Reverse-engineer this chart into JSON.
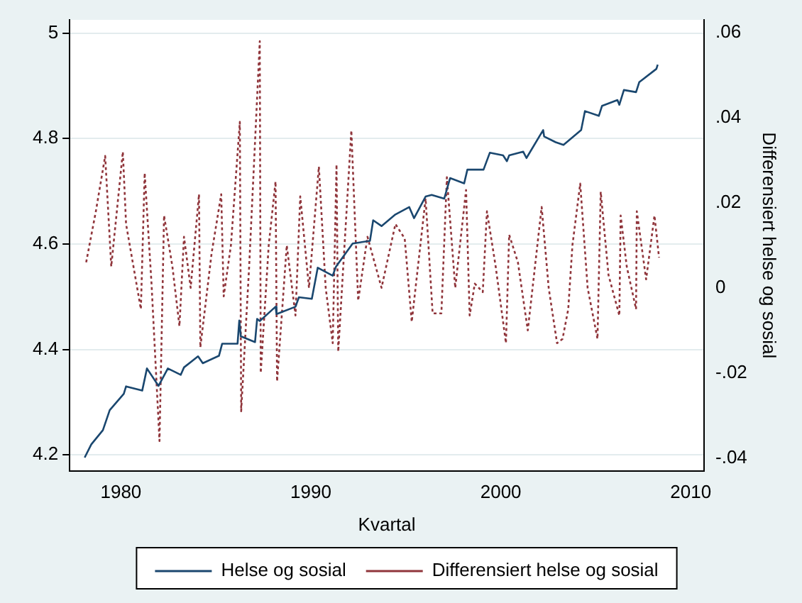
{
  "chart_data": {
    "type": "line",
    "xlabel": "Kvartal",
    "y2label": "Differensiert helse og sosial",
    "xlim": [
      1977.3,
      2010.7
    ],
    "xticks": [
      1980,
      1990,
      2000,
      2010
    ],
    "ylim": [
      4.17,
      5.025
    ],
    "yticks": [
      4.2,
      4.4,
      4.6,
      4.8,
      5
    ],
    "y2lim": [
      -0.043,
      0.063
    ],
    "y2ticks": [
      {
        "value": -0.04,
        "label": "-.04"
      },
      {
        "value": -0.02,
        "label": "-.02"
      },
      {
        "value": 0,
        "label": "0"
      },
      {
        "value": 0.02,
        "label": ".02"
      },
      {
        "value": 0.04,
        "label": ".04"
      },
      {
        "value": 0.06,
        "label": ".06"
      }
    ],
    "grid": "y",
    "legend": "bottom",
    "marker": "none",
    "series": [
      {
        "name": "Helse og sosial",
        "color": "#1a476f",
        "line_style": "solid",
        "x": [
          1978.09,
          1978.44,
          1979.05,
          1979.41,
          1980.15,
          1980.27,
          1981.12,
          1981.37,
          1981.98,
          1982.47,
          1983.15,
          1983.32,
          1984.06,
          1984.31,
          1985.16,
          1985.33,
          1986.14,
          1986.23,
          1986.31,
          1987.06,
          1987.17,
          1987.31,
          1988.14,
          1988.19,
          1989.19,
          1989.37,
          1990.05,
          1990.36,
          1991.15,
          1991.32,
          1991.52,
          1992.2,
          1993.11,
          1993.28,
          1993.72,
          1994.45,
          1995.18,
          1995.43,
          1996.04,
          1996.36,
          1997.02,
          1997.33,
          1998.07,
          1998.24,
          1999.09,
          1999.42,
          2000.12,
          2000.32,
          2000.44,
          2001.18,
          2001.35,
          2002.23,
          2002.28,
          2002.89,
          2003.3,
          2004.23,
          2004.43,
          2005.16,
          2005.33,
          2006.14,
          2006.24,
          2006.48,
          2007.12,
          2007.29,
          2008.19,
          2008.26
        ],
        "values": [
          4.195,
          4.22,
          4.247,
          4.285,
          4.316,
          4.33,
          4.322,
          4.364,
          4.331,
          4.364,
          4.352,
          4.366,
          4.387,
          4.374,
          4.388,
          4.411,
          4.411,
          4.455,
          4.425,
          4.414,
          4.458,
          4.454,
          4.481,
          4.467,
          4.481,
          4.499,
          4.496,
          4.555,
          4.54,
          4.557,
          4.567,
          4.601,
          4.606,
          4.645,
          4.634,
          4.656,
          4.67,
          4.649,
          4.69,
          4.693,
          4.686,
          4.725,
          4.715,
          4.741,
          4.741,
          4.773,
          4.768,
          4.757,
          4.768,
          4.775,
          4.763,
          4.816,
          4.804,
          4.793,
          4.788,
          4.816,
          4.852,
          4.843,
          4.862,
          4.873,
          4.864,
          4.892,
          4.888,
          4.907,
          4.932,
          4.94
        ]
      },
      {
        "name": "Differensiert helse og sosial",
        "color": "#90353b",
        "line_style": "dotted",
        "axis": "y2",
        "x": [
          1978.17,
          1978.68,
          1979.17,
          1979.49,
          1980.1,
          1980.27,
          1981.05,
          1981.25,
          1981.61,
          1982.03,
          1982.27,
          1982.71,
          1983.08,
          1983.32,
          1983.67,
          1984.11,
          1984.18,
          1984.77,
          1985.28,
          1985.41,
          1985.79,
          1986.26,
          1986.33,
          1986.75,
          1987.31,
          1987.36,
          1987.78,
          1988.14,
          1988.22,
          1988.73,
          1989.19,
          1989.44,
          1989.9,
          1990.42,
          1990.78,
          1991.15,
          1991.35,
          1991.44,
          1992.13,
          1992.49,
          1992.98,
          1993.72,
          1994.45,
          1994.94,
          1995.31,
          1996.04,
          1996.41,
          1996.87,
          1997.16,
          1997.6,
          1998.17,
          1998.36,
          1998.63,
          1999.05,
          1999.27,
          1999.73,
          2000.27,
          2000.44,
          2000.9,
          2001.42,
          2002.15,
          2002.52,
          2002.96,
          2003.25,
          2003.55,
          2003.77,
          2004.18,
          2004.57,
          2005.09,
          2005.26,
          2005.67,
          2006.24,
          2006.31,
          2006.63,
          2007.12,
          2007.16,
          2007.65,
          2008.09,
          2008.33
        ],
        "values": [
          0.006,
          0.018,
          0.031,
          0.005,
          0.032,
          0.015,
          -0.005,
          0.027,
          0.001,
          -0.036,
          0.017,
          0.005,
          -0.009,
          0.012,
          0,
          0.022,
          -0.014,
          0.008,
          0.022,
          -0.002,
          0.01,
          0.039,
          -0.029,
          0.005,
          0.058,
          -0.02,
          0.01,
          0.025,
          -0.022,
          0.01,
          -0.0065,
          0.0215,
          0,
          0.0285,
          0,
          -0.013,
          0.029,
          -0.015,
          0.037,
          -0.003,
          0.012,
          0,
          0.015,
          0.0116,
          -0.008,
          0.021,
          -0.006,
          -0.006,
          0.026,
          0,
          0.023,
          -0.0065,
          0.001,
          -0.001,
          0.018,
          0.005,
          -0.013,
          0.0125,
          0.006,
          -0.01,
          0.019,
          0,
          -0.013,
          -0.012,
          -0.005,
          0.01,
          0.0245,
          0,
          -0.012,
          0.0226,
          0.003,
          -0.0065,
          0.017,
          0.005,
          -0.005,
          0.018,
          0.002,
          0.017,
          0.0071
        ]
      }
    ]
  }
}
